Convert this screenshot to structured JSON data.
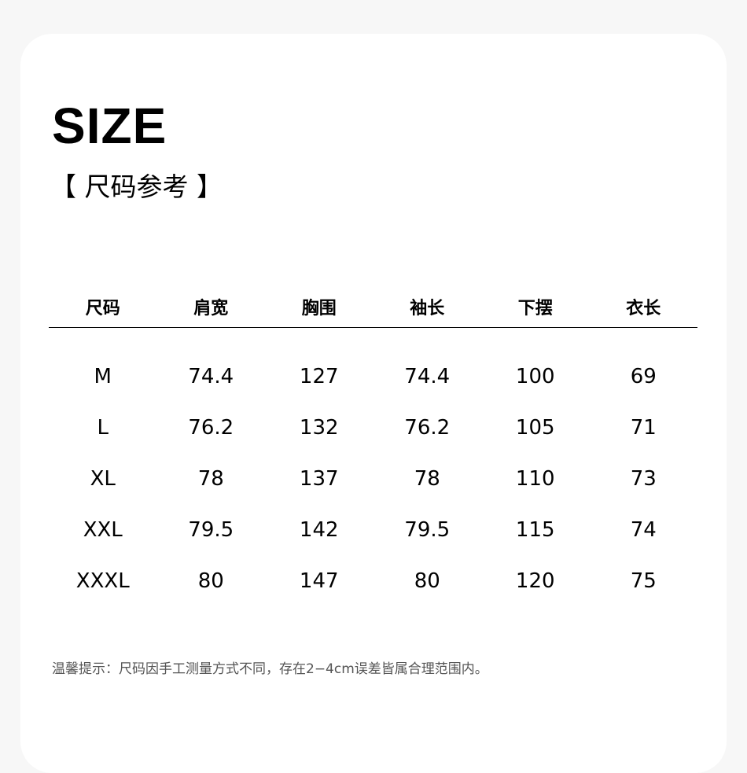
{
  "title": "SIZE",
  "subtitle": "【 尺码参考 】",
  "table": {
    "headers": [
      "尺码",
      "肩宽",
      "胸围",
      "袖长",
      "下摆",
      "衣长"
    ],
    "rows": [
      [
        "M",
        "74.4",
        "127",
        "74.4",
        "100",
        "69"
      ],
      [
        "L",
        "76.2",
        "132",
        "76.2",
        "105",
        "71"
      ],
      [
        "XL",
        "78",
        "137",
        "78",
        "110",
        "73"
      ],
      [
        "XXL",
        "79.5",
        "142",
        "79.5",
        "115",
        "74"
      ],
      [
        "XXXL",
        "80",
        "147",
        "80",
        "120",
        "75"
      ]
    ]
  },
  "note": "温馨提示：尺码因手工测量方式不同，存在2−4cm误差皆属合理范围内。"
}
